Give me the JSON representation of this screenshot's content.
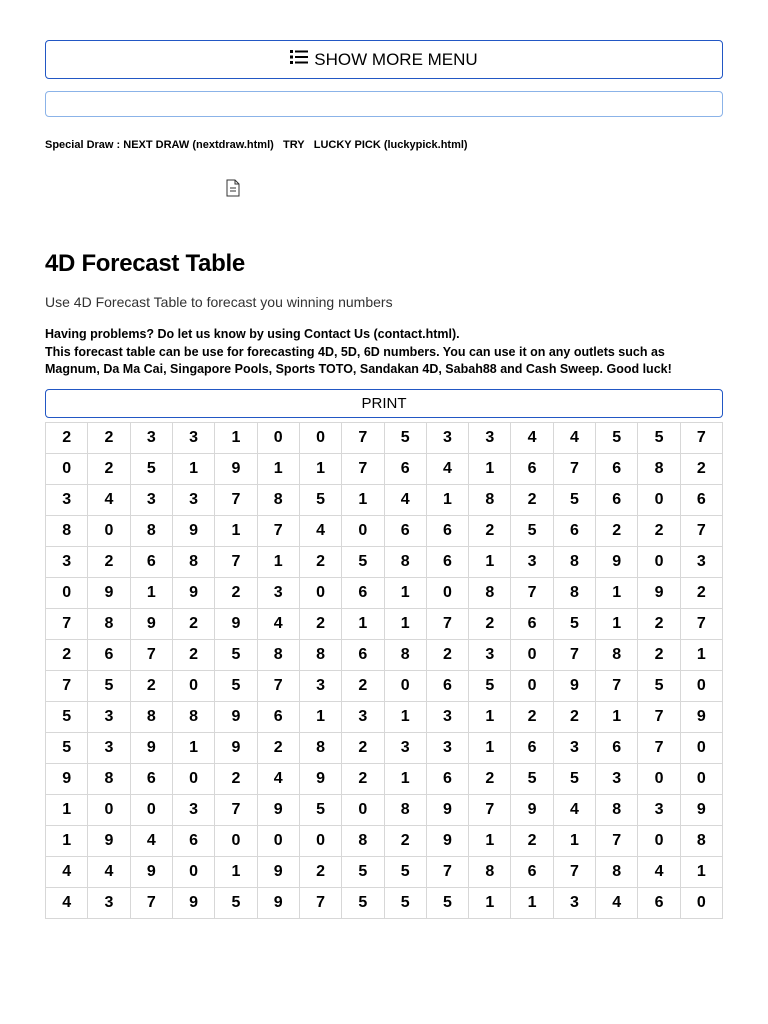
{
  "menu_label": "SHOW MORE MENU",
  "links": {
    "prefix": "Special Draw : ",
    "next_draw": "NEXT DRAW (nextdraw.html)",
    "try": "TRY",
    "lucky_pick": "LUCKY PICK (luckypick.html)"
  },
  "heading": "4D Forecast Table",
  "subtitle": "Use 4D Forecast Table to forecast you winning numbers",
  "help_line1": "Having problems? Do let us know by using Contact Us (contact.html).",
  "help_line2": "This forecast table can be use for forecasting 4D, 5D, 6D numbers. You can use it on any outlets such as Magnum, Da Ma Cai, Singapore Pools, Sports TOTO, Sandakan 4D, Sabah88 and Cash Sweep. Good luck!",
  "print_label": "PRINT",
  "table": {
    "rows": [
      [
        2,
        2,
        3,
        3,
        1,
        0,
        0,
        7,
        5,
        3,
        3,
        4,
        4,
        5,
        5,
        7
      ],
      [
        0,
        2,
        5,
        1,
        9,
        1,
        1,
        7,
        6,
        4,
        1,
        6,
        7,
        6,
        8,
        2
      ],
      [
        3,
        4,
        3,
        3,
        7,
        8,
        5,
        1,
        4,
        1,
        8,
        2,
        5,
        6,
        0,
        6
      ],
      [
        8,
        0,
        8,
        9,
        1,
        7,
        4,
        0,
        6,
        6,
        2,
        5,
        6,
        2,
        2,
        7
      ],
      [
        3,
        2,
        6,
        8,
        7,
        1,
        2,
        5,
        8,
        6,
        1,
        3,
        8,
        9,
        0,
        3
      ],
      [
        0,
        9,
        1,
        9,
        2,
        3,
        0,
        6,
        1,
        0,
        8,
        7,
        8,
        1,
        9,
        2
      ],
      [
        7,
        8,
        9,
        2,
        9,
        4,
        2,
        1,
        1,
        7,
        2,
        6,
        5,
        1,
        2,
        7
      ],
      [
        2,
        6,
        7,
        2,
        5,
        8,
        8,
        6,
        8,
        2,
        3,
        0,
        7,
        8,
        2,
        1
      ],
      [
        7,
        5,
        2,
        0,
        5,
        7,
        3,
        2,
        0,
        6,
        5,
        0,
        9,
        7,
        5,
        0
      ],
      [
        5,
        3,
        8,
        8,
        9,
        6,
        1,
        3,
        1,
        3,
        1,
        2,
        2,
        1,
        7,
        9
      ],
      [
        5,
        3,
        9,
        1,
        9,
        2,
        8,
        2,
        3,
        3,
        1,
        6,
        3,
        6,
        7,
        0
      ],
      [
        9,
        8,
        6,
        0,
        2,
        4,
        9,
        2,
        1,
        6,
        2,
        5,
        5,
        3,
        0,
        0
      ],
      [
        1,
        0,
        0,
        3,
        7,
        9,
        5,
        0,
        8,
        9,
        7,
        9,
        4,
        8,
        3,
        9
      ],
      [
        1,
        9,
        4,
        6,
        0,
        0,
        0,
        8,
        2,
        9,
        1,
        2,
        1,
        7,
        0,
        8
      ],
      [
        4,
        4,
        9,
        0,
        1,
        9,
        2,
        5,
        5,
        7,
        8,
        6,
        7,
        8,
        4,
        1
      ],
      [
        4,
        3,
        7,
        9,
        5,
        9,
        7,
        5,
        5,
        5,
        1,
        1,
        3,
        4,
        6,
        0
      ]
    ],
    "cell_border_color": "#d7d7d7",
    "cell_font_weight": "bold"
  },
  "colors": {
    "button_border": "#2257c4",
    "bar_border": "#8bb3e8"
  }
}
